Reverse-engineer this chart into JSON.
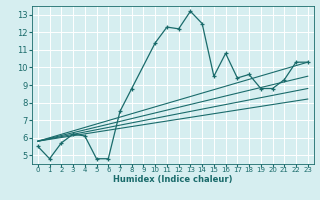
{
  "xlabel": "Humidex (Indice chaleur)",
  "ylabel": "",
  "bg_color": "#d6eef0",
  "line_color": "#1a6b6b",
  "grid_color": "#ffffff",
  "xlim": [
    -0.5,
    23.5
  ],
  "ylim": [
    4.5,
    13.5
  ],
  "xticks": [
    0,
    1,
    2,
    3,
    4,
    5,
    6,
    7,
    8,
    9,
    10,
    11,
    12,
    13,
    14,
    15,
    16,
    17,
    18,
    19,
    20,
    21,
    22,
    23
  ],
  "yticks": [
    5,
    6,
    7,
    8,
    9,
    10,
    11,
    12,
    13
  ],
  "series": [
    {
      "x": [
        0,
        1,
        2,
        3,
        4,
        5,
        6,
        7,
        8,
        10,
        11,
        12,
        13,
        14,
        15,
        16,
        17,
        18,
        19,
        20,
        21,
        22,
        23
      ],
      "y": [
        5.5,
        4.8,
        5.7,
        6.2,
        6.1,
        4.8,
        4.8,
        7.5,
        8.8,
        11.4,
        12.3,
        12.2,
        13.2,
        12.5,
        9.5,
        10.8,
        9.4,
        9.6,
        8.8,
        8.8,
        9.3,
        10.3,
        10.3
      ]
    }
  ],
  "regression_lines": [
    {
      "x": [
        0,
        23
      ],
      "y": [
        5.8,
        8.8
      ]
    },
    {
      "x": [
        0,
        23
      ],
      "y": [
        5.8,
        8.2
      ]
    },
    {
      "x": [
        0,
        23
      ],
      "y": [
        5.8,
        9.5
      ]
    },
    {
      "x": [
        0,
        23
      ],
      "y": [
        5.8,
        10.3
      ]
    }
  ],
  "xlabel_fontsize": 6,
  "tick_fontsize_x": 5,
  "tick_fontsize_y": 6
}
